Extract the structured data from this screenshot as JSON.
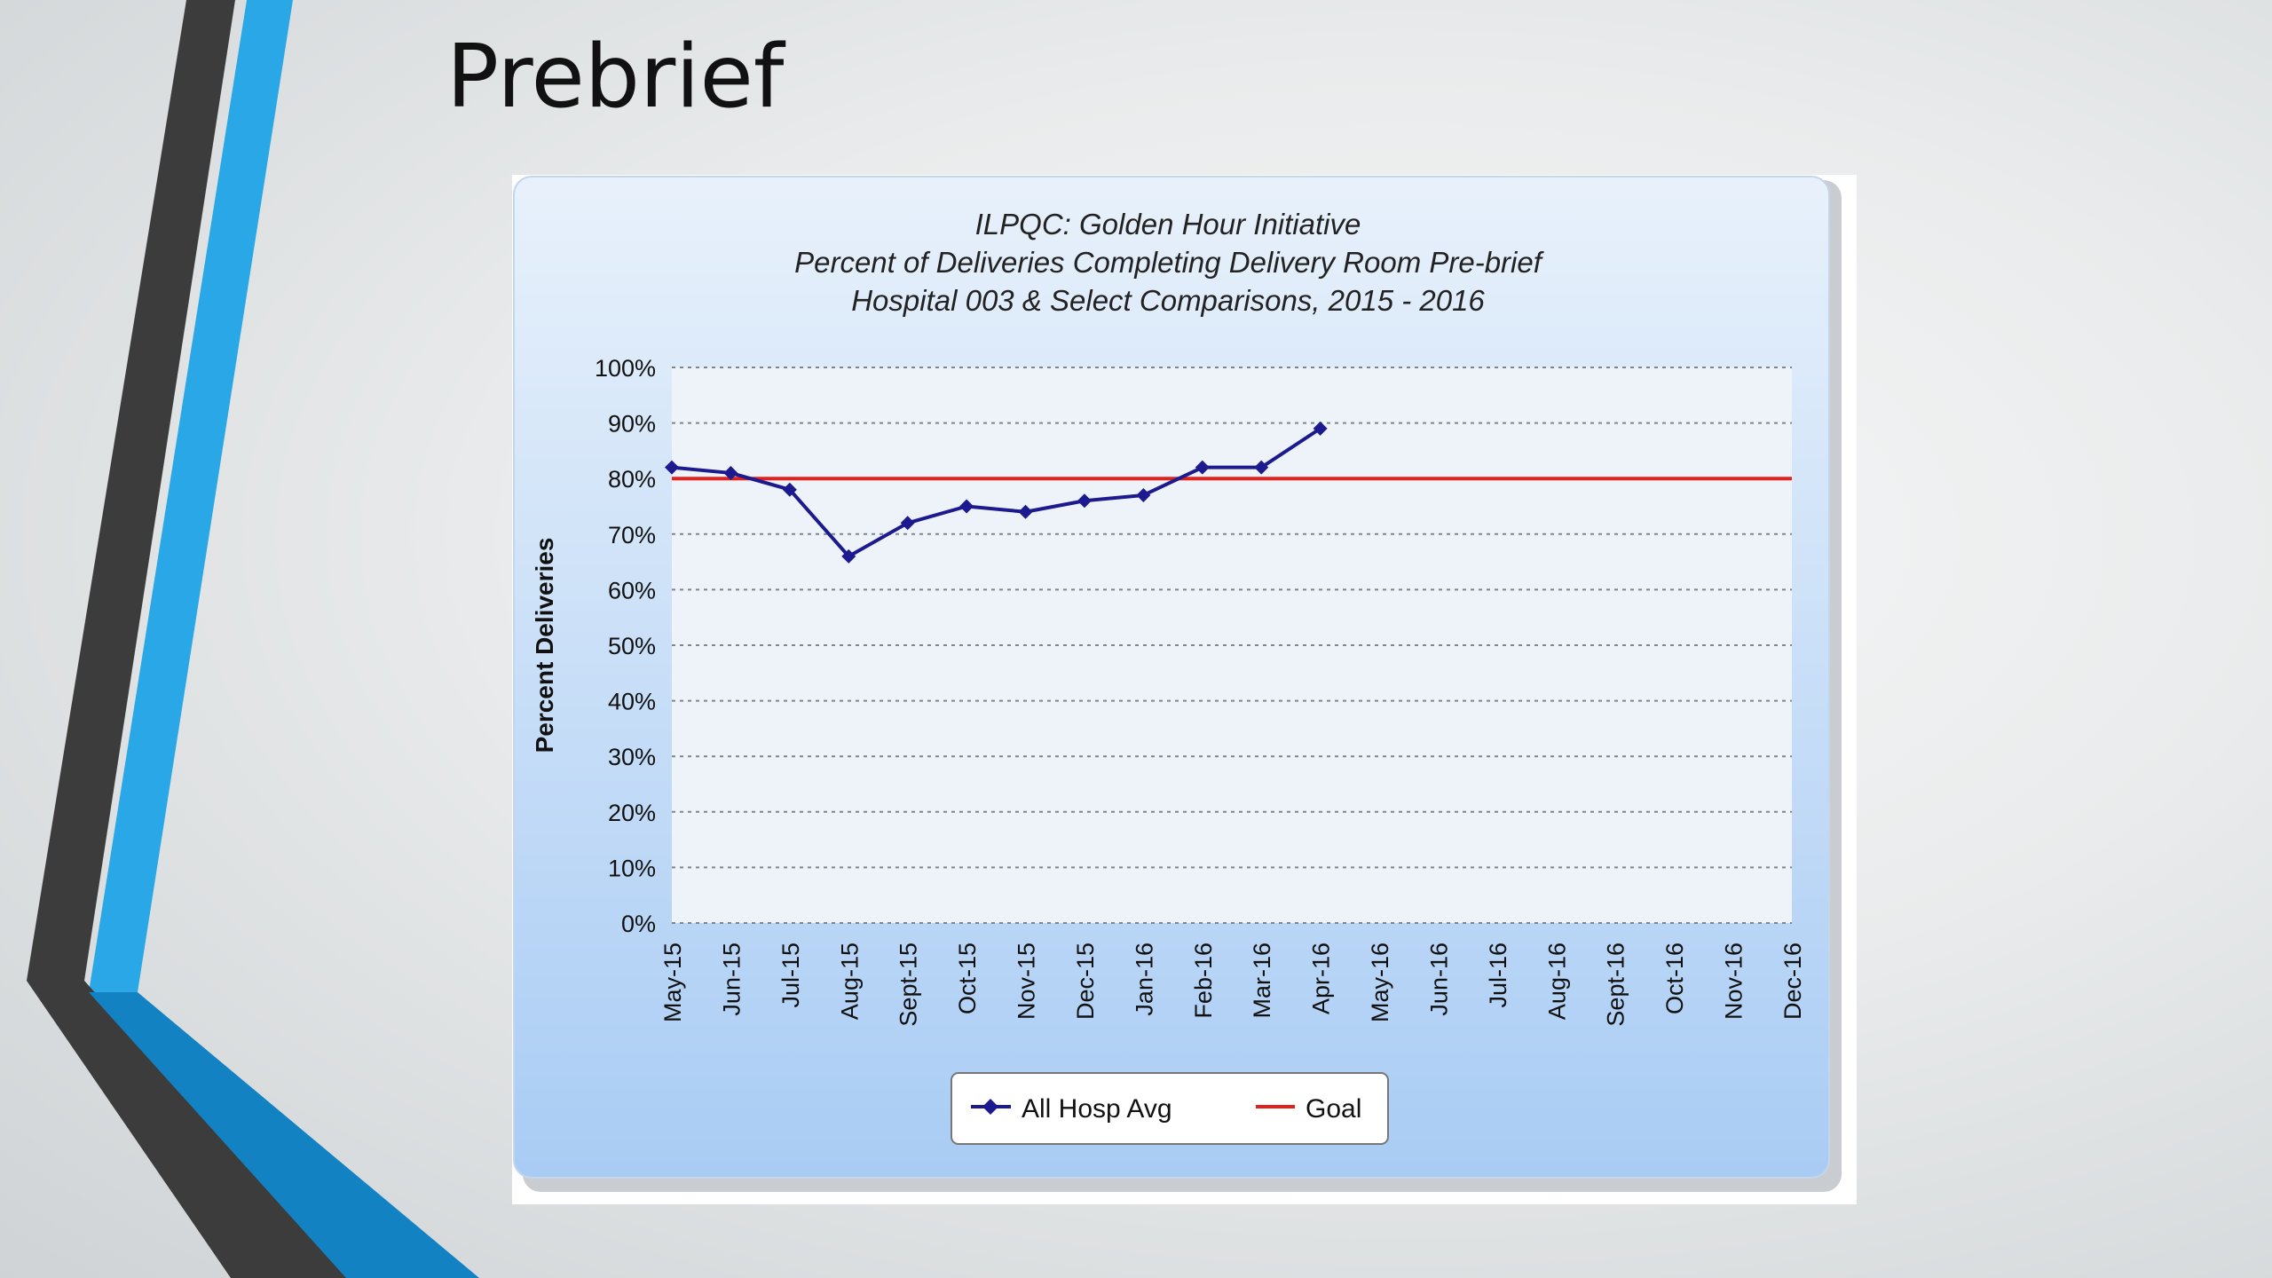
{
  "slide": {
    "title": "Prebrief"
  },
  "colors": {
    "accent_blue": "#2aa7e6",
    "deco_dark": "#3c3c3c",
    "series_all_hosp": "#1c1a8e",
    "series_goal": "#e2201c"
  },
  "chart_data": {
    "type": "line",
    "title": "ILPQC: Golden Hour Initiative",
    "subtitle": [
      "Percent of Deliveries Completing Delivery Room Pre-brief",
      "Hospital 003 & Select Comparisons, 2015 - 2016"
    ],
    "xlabel": "",
    "ylabel": "Percent Deliveries",
    "categories": [
      "May-15",
      "Jun-15",
      "Jul-15",
      "Aug-15",
      "Sept-15",
      "Oct-15",
      "Nov-15",
      "Dec-15",
      "Jan-16",
      "Feb-16",
      "Mar-16",
      "Apr-16",
      "May-16",
      "Jun-16",
      "Jul-16",
      "Aug-16",
      "Sept-16",
      "Oct-16",
      "Nov-16",
      "Dec-16"
    ],
    "yticks": [
      "0%",
      "10%",
      "20%",
      "30%",
      "40%",
      "50%",
      "60%",
      "70%",
      "80%",
      "90%",
      "100%"
    ],
    "ylim": [
      0,
      100
    ],
    "grid": true,
    "legend_position": "bottom",
    "series": [
      {
        "name": "All Hosp Avg",
        "values": [
          82,
          81,
          78,
          66,
          72,
          75,
          74,
          76,
          77,
          82,
          82,
          89,
          null,
          null,
          null,
          null,
          null,
          null,
          null,
          null
        ],
        "marker": "diamond",
        "color": "#1c1a8e"
      },
      {
        "name": "Goal",
        "values": [
          80,
          80,
          80,
          80,
          80,
          80,
          80,
          80,
          80,
          80,
          80,
          80,
          80,
          80,
          80,
          80,
          80,
          80,
          80,
          80
        ],
        "marker": "none",
        "color": "#e2201c"
      }
    ]
  }
}
